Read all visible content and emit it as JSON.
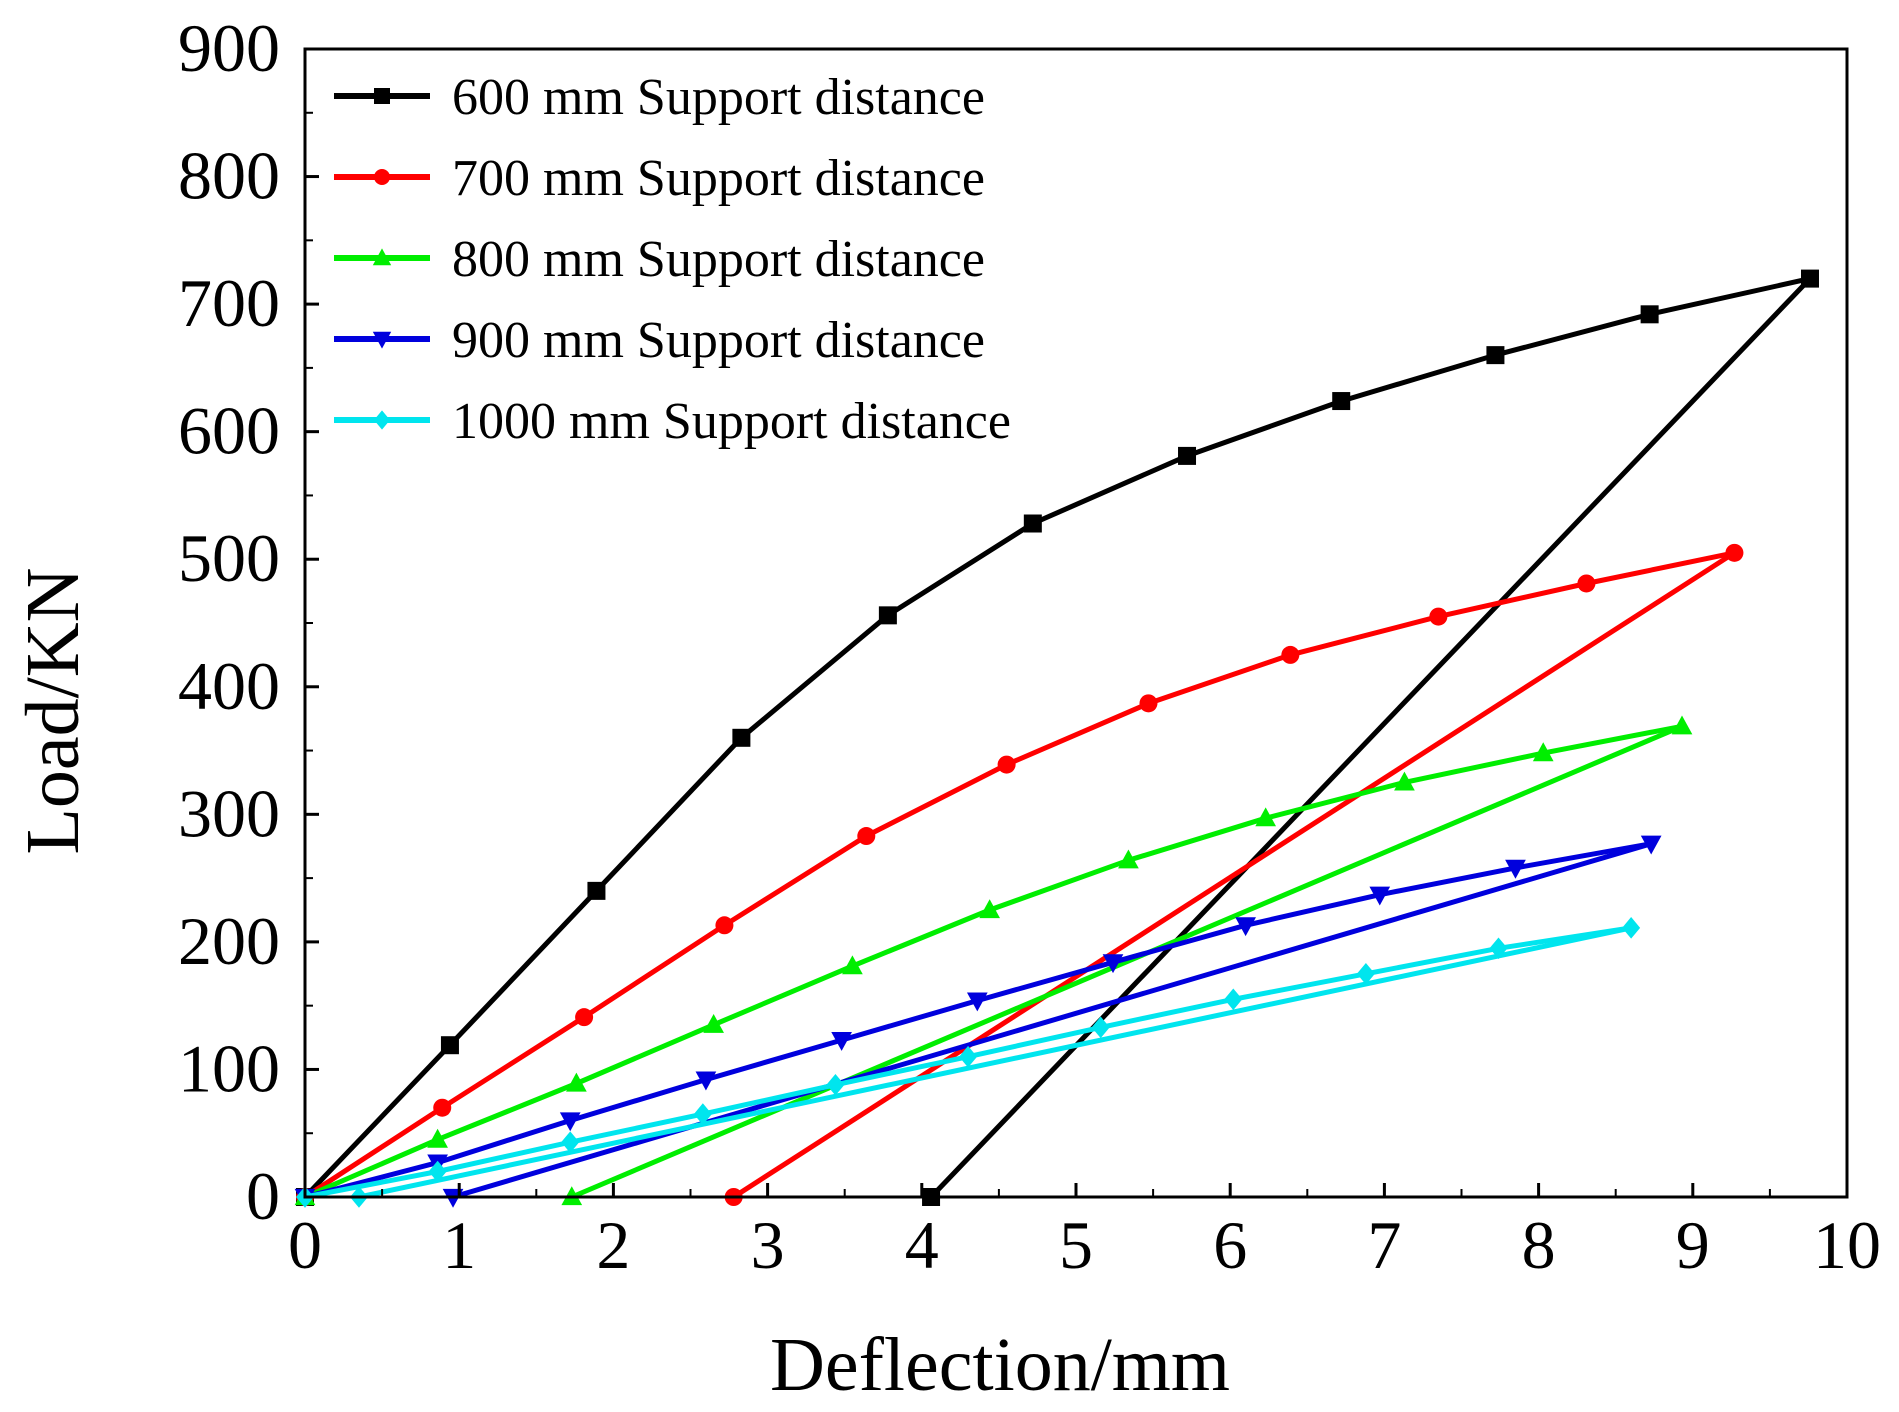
{
  "chart_data": {
    "type": "line",
    "title": "",
    "xlabel": "Deflection/mm",
    "ylabel": "Load/KN",
    "xlim": [
      0,
      10
    ],
    "ylim": [
      0,
      900
    ],
    "xticks": [
      0,
      1,
      2,
      3,
      4,
      5,
      6,
      7,
      8,
      9,
      10
    ],
    "yticks": [
      0,
      100,
      200,
      300,
      400,
      500,
      600,
      700,
      800,
      900
    ],
    "grid": false,
    "legend_position": "top-left",
    "series": [
      {
        "name": "600 mm Support distance",
        "color": "#000000",
        "marker": "square",
        "loading": [
          [
            0,
            0
          ],
          [
            0.94,
            119
          ],
          [
            1.89,
            240
          ],
          [
            2.83,
            360
          ],
          [
            3.78,
            456
          ],
          [
            4.72,
            528
          ],
          [
            5.72,
            581
          ],
          [
            6.72,
            624
          ],
          [
            7.72,
            660
          ],
          [
            8.72,
            692
          ],
          [
            9.76,
            720
          ]
        ],
        "unloading": [
          [
            9.76,
            720
          ],
          [
            4.06,
            0
          ]
        ]
      },
      {
        "name": "700 mm Support distance",
        "color": "#ff0000",
        "marker": "circle",
        "loading": [
          [
            0,
            0
          ],
          [
            0.89,
            70
          ],
          [
            1.81,
            141
          ],
          [
            2.72,
            213
          ],
          [
            3.64,
            283
          ],
          [
            4.55,
            339
          ],
          [
            5.47,
            387
          ],
          [
            6.39,
            425
          ],
          [
            7.35,
            455
          ],
          [
            8.31,
            481
          ],
          [
            9.27,
            505
          ]
        ],
        "unloading": [
          [
            9.27,
            505
          ],
          [
            2.78,
            0
          ]
        ]
      },
      {
        "name": "800 mm Support distance",
        "color": "#00ee00",
        "marker": "triangle-up",
        "loading": [
          [
            0,
            0
          ],
          [
            0.86,
            45
          ],
          [
            1.76,
            89
          ],
          [
            2.65,
            135
          ],
          [
            3.55,
            181
          ],
          [
            4.44,
            225
          ],
          [
            5.34,
            264
          ],
          [
            6.23,
            297
          ],
          [
            7.13,
            325
          ],
          [
            8.03,
            348
          ],
          [
            8.93,
            369
          ]
        ],
        "unloading": [
          [
            8.93,
            369
          ],
          [
            1.73,
            0
          ]
        ]
      },
      {
        "name": "900 mm Support distance",
        "color": "#0000dd",
        "marker": "triangle-down",
        "loading": [
          [
            0,
            0
          ],
          [
            0.86,
            27
          ],
          [
            1.72,
            60
          ],
          [
            2.6,
            92
          ],
          [
            3.48,
            123
          ],
          [
            4.36,
            154
          ],
          [
            5.24,
            184
          ],
          [
            6.1,
            213
          ],
          [
            6.97,
            237
          ],
          [
            7.85,
            258
          ],
          [
            8.73,
            277
          ]
        ],
        "unloading": [
          [
            8.73,
            277
          ],
          [
            0.96,
            0
          ]
        ]
      },
      {
        "name": "1000 mm Support distance",
        "color": "#00e5ee",
        "marker": "diamond",
        "loading": [
          [
            0,
            0
          ],
          [
            0.86,
            20
          ],
          [
            1.72,
            43
          ],
          [
            2.58,
            65
          ],
          [
            3.44,
            88
          ],
          [
            4.3,
            110
          ],
          [
            5.16,
            133
          ],
          [
            6.02,
            155
          ],
          [
            6.88,
            175
          ],
          [
            7.74,
            195
          ],
          [
            8.6,
            211
          ]
        ],
        "unloading": [
          [
            8.6,
            211
          ],
          [
            0.35,
            0
          ]
        ]
      }
    ]
  }
}
